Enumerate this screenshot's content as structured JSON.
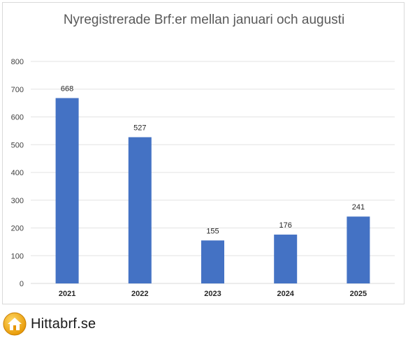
{
  "chart_data": {
    "type": "bar",
    "title": "Nyregistrerade Brf:er mellan januari och augusti",
    "categories": [
      "2021",
      "2022",
      "2023",
      "2024",
      "2025"
    ],
    "values": [
      668,
      527,
      155,
      176,
      241
    ],
    "data_labels": [
      "668",
      "527",
      "155",
      "176",
      "241"
    ],
    "y_ticks": [
      "0",
      "100",
      "200",
      "300",
      "400",
      "500",
      "600",
      "700",
      "800"
    ],
    "ylim": [
      0,
      800
    ],
    "grid": true,
    "legend": "none",
    "bar_color": "#4472c4"
  },
  "brand": {
    "name": "Hittabrf.se",
    "icon": "house-icon"
  }
}
